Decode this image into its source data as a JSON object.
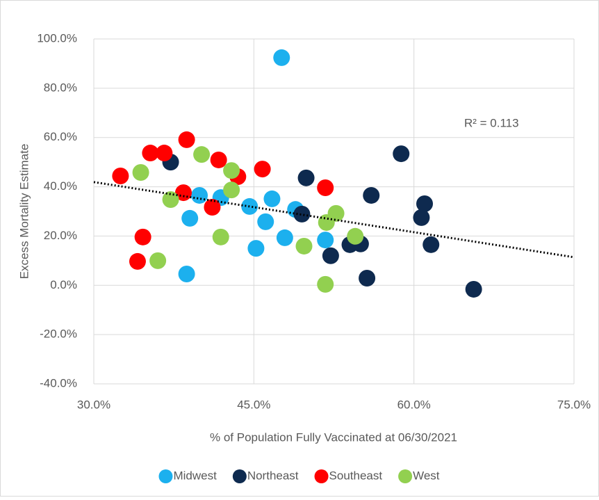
{
  "chart_data": {
    "type": "scatter",
    "xlabel": "% of Population Fully Vaccinated at 06/30/2021",
    "ylabel": "Excess Mortality Estimate",
    "annotation": "R² = 0.113",
    "xlim": [
      30,
      75
    ],
    "ylim": [
      -40,
      100
    ],
    "xticks": [
      {
        "value": 30,
        "label": "30.0%"
      },
      {
        "value": 45,
        "label": "45.0%"
      },
      {
        "value": 60,
        "label": "60.0%"
      },
      {
        "value": 75,
        "label": "75.0%"
      }
    ],
    "yticks": [
      {
        "value": -40,
        "label": "-40.0%"
      },
      {
        "value": -20,
        "label": "-20.0%"
      },
      {
        "value": 0,
        "label": "0.0%"
      },
      {
        "value": 20,
        "label": "20.0%"
      },
      {
        "value": 40,
        "label": "40.0%"
      },
      {
        "value": 60,
        "label": "60.0%"
      },
      {
        "value": 80,
        "label": "80.0%"
      },
      {
        "value": 100,
        "label": "100.0%"
      }
    ],
    "grid": true,
    "legend": "bottom",
    "series": [
      {
        "name": "Midwest",
        "color": "#1cb0ee",
        "x": [
          47.6,
          39.9,
          41.9,
          39.0,
          44.6,
          46.7,
          48.9,
          46.1,
          47.9,
          45.2,
          51.7,
          38.7
        ],
        "values": [
          92.4,
          36.5,
          35.6,
          27.2,
          32.0,
          35.1,
          30.8,
          25.8,
          19.3,
          15.0,
          18.4,
          4.6
        ]
      },
      {
        "name": "Northeast",
        "color": "#0e2a4f",
        "x": [
          37.2,
          49.9,
          58.8,
          56.0,
          61.0,
          60.7,
          61.6,
          49.5,
          52.2,
          54.0,
          55.0,
          55.6,
          65.6
        ],
        "values": [
          50.0,
          43.6,
          53.4,
          36.5,
          33.1,
          27.5,
          16.5,
          28.9,
          12.0,
          16.5,
          16.8,
          2.9,
          -1.6
        ]
      },
      {
        "name": "Southeast",
        "color": "#ff0000",
        "x": [
          32.5,
          35.3,
          36.6,
          38.7,
          41.7,
          43.5,
          45.8,
          51.7,
          38.4,
          41.1,
          34.6,
          34.1
        ],
        "values": [
          44.4,
          53.7,
          53.7,
          59.1,
          50.9,
          44.1,
          47.2,
          39.6,
          37.6,
          31.7,
          19.6,
          9.7
        ]
      },
      {
        "name": "West",
        "color": "#92d050",
        "x": [
          34.4,
          40.1,
          42.9,
          42.9,
          37.2,
          41.9,
          36.0,
          49.7,
          52.7,
          51.8,
          54.5,
          51.7
        ],
        "values": [
          45.8,
          53.1,
          46.6,
          38.7,
          34.8,
          19.6,
          10.0,
          15.9,
          29.2,
          25.5,
          19.9,
          0.4
        ]
      }
    ],
    "trendline": {
      "x": [
        30,
        75
      ],
      "values": [
        41.9,
        11.4
      ]
    }
  }
}
